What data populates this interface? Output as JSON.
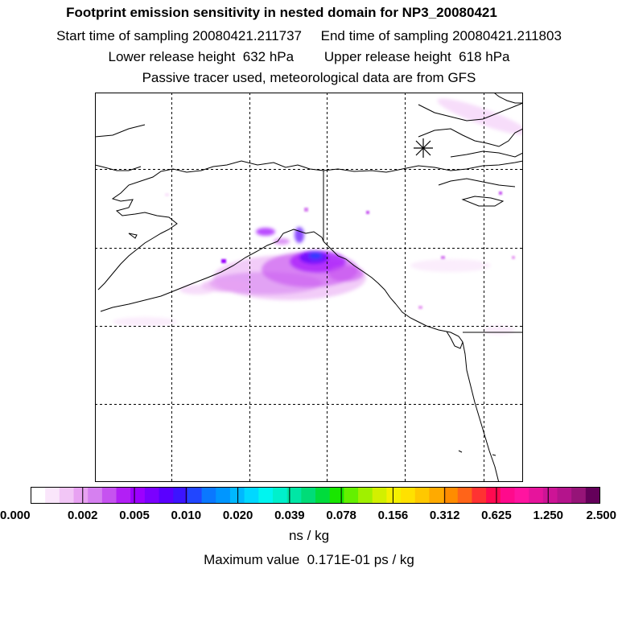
{
  "header": {
    "title": "Footprint emission sensitivity in nested domain for NP3_20080421",
    "line2": "Start time of sampling 20080421.211737     End time of sampling 20080421.211803",
    "line3": "Lower release height  632 hPa        Upper release height  618 hPa",
    "line4": "Passive tracer used, meteorological data are from GFS"
  },
  "colorbar": {
    "ticks": [
      "0.000",
      "0.002",
      "0.005",
      "0.010",
      "0.020",
      "0.039",
      "0.078",
      "0.156",
      "0.312",
      "0.625",
      "1.250",
      "2.500"
    ],
    "colors": [
      "#ffffff",
      "#fae6fb",
      "#f2c6f6",
      "#e8a2f2",
      "#d680f0",
      "#c652f0",
      "#b21ff5",
      "#9c00ff",
      "#7b00ff",
      "#5a00ff",
      "#3c14ff",
      "#2146ff",
      "#0a78ff",
      "#0096ff",
      "#00b8ff",
      "#00d8ff",
      "#00f5f0",
      "#00f0cc",
      "#00e6a5",
      "#00dc78",
      "#00dc3c",
      "#19e600",
      "#64f000",
      "#a0f000",
      "#d2f000",
      "#f5f000",
      "#ffe100",
      "#ffc800",
      "#ffaa00",
      "#ff8c00",
      "#ff6419",
      "#ff3232",
      "#ff0a50",
      "#ff0a8c",
      "#ff14a0",
      "#e6149c",
      "#cd1496",
      "#b4148c",
      "#961478",
      "#64005a"
    ],
    "units": "ns / kg",
    "max_value_text": "Maximum value  0.171E-01 ps / kg"
  }
}
